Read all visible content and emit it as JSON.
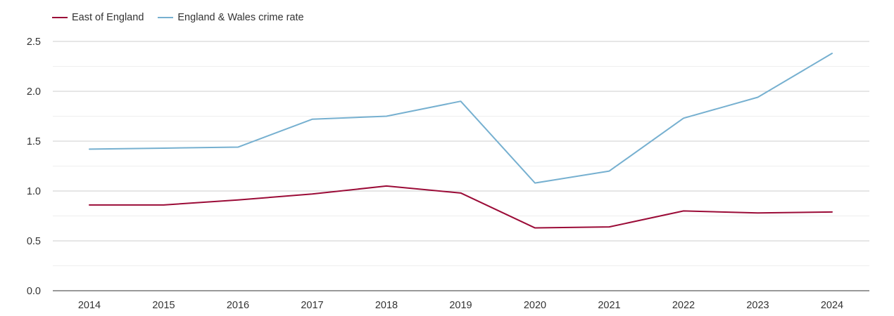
{
  "chart_data": {
    "type": "line",
    "title": "",
    "xlabel": "",
    "ylabel": "",
    "x": [
      "2014",
      "2015",
      "2016",
      "2017",
      "2018",
      "2019",
      "2020",
      "2021",
      "2022",
      "2023",
      "2024"
    ],
    "ylim": [
      0,
      2.5
    ],
    "yticks": [
      "0.0",
      "0.5",
      "1.0",
      "1.5",
      "2.0",
      "2.5"
    ],
    "grid": true,
    "legend_position": "top-left",
    "series": [
      {
        "name": "East of England",
        "color": "#9b0b37",
        "values": [
          0.86,
          0.86,
          0.91,
          0.97,
          1.05,
          0.98,
          0.63,
          0.64,
          0.8,
          0.78,
          0.79
        ]
      },
      {
        "name": "England & Wales crime rate",
        "color": "#76b0d0",
        "values": [
          1.42,
          1.43,
          1.44,
          1.72,
          1.75,
          1.9,
          1.08,
          1.2,
          1.73,
          1.94,
          2.38
        ]
      }
    ]
  }
}
